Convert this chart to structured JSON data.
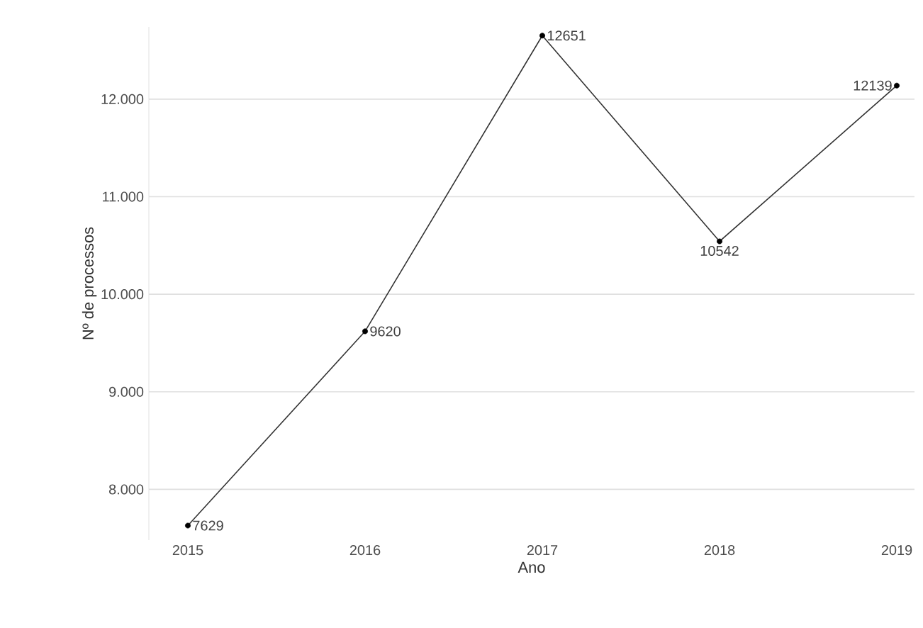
{
  "chart_data": {
    "type": "line",
    "xlabel": "Ano",
    "ylabel": "Nº de processos",
    "x": [
      2015,
      2016,
      2017,
      2018,
      2019
    ],
    "values": [
      7629,
      9620,
      12651,
      10542,
      12139
    ],
    "color": "#333333",
    "marker": "circle",
    "line_style": "solid",
    "data_labels": true,
    "grid": "y",
    "xlim": [
      2014.78,
      2019.1
    ],
    "ylim": [
      7480,
      12740
    ],
    "xticks": [
      2015,
      2016,
      2017,
      2018,
      2019
    ],
    "yticks": [
      {
        "value": 8000,
        "label": "8.000"
      },
      {
        "value": 9000,
        "label": "9.000"
      },
      {
        "value": 10000,
        "label": "10.000"
      },
      {
        "value": 11000,
        "label": "11.000"
      },
      {
        "value": 12000,
        "label": "12.000"
      }
    ]
  }
}
